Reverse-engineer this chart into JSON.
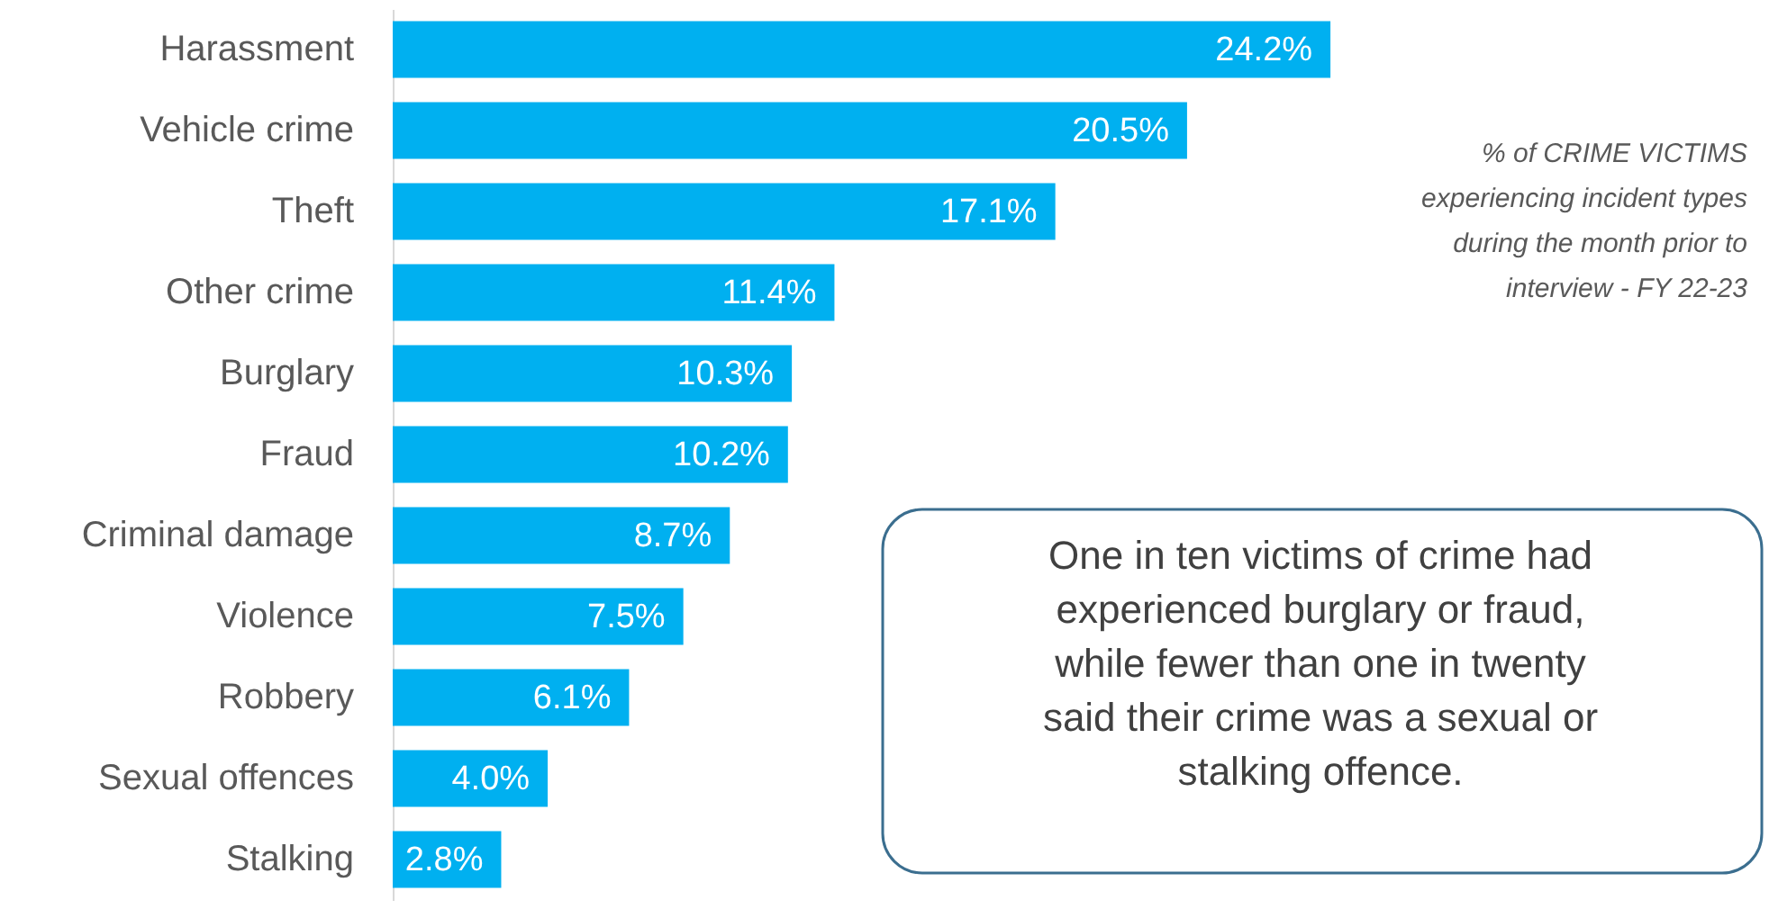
{
  "chart_data": {
    "type": "bar",
    "orientation": "horizontal",
    "value_labels": [
      "24.2%",
      "20.5%",
      "17.1%",
      "11.4%",
      "10.3%",
      "10.2%",
      "8.7%",
      "7.5%",
      "6.1%",
      "4.0%",
      "2.8%"
    ],
    "subtitle": "% of CRIME VICTIMS\nexperiencing incident types\nduring the month prior to\ninterview - FY 22-23",
    "categories": [
      "Harassment",
      "Vehicle crime",
      "Theft",
      "Other crime",
      "Burglary",
      "Fraud",
      "Criminal damage",
      "Violence",
      "Robbery",
      "Sexual offences",
      "Stalking"
    ],
    "values": [
      24.2,
      20.5,
      17.1,
      11.4,
      10.3,
      10.2,
      8.7,
      7.5,
      6.1,
      4.0,
      2.8
    ],
    "color": "#00b0f0",
    "annotations": [
      "One in ten victims of crime had\nexperienced burglary or fraud,\nwhile fewer than one in twenty\nsaid their crime was a sexual or\nstalking offence."
    ]
  }
}
